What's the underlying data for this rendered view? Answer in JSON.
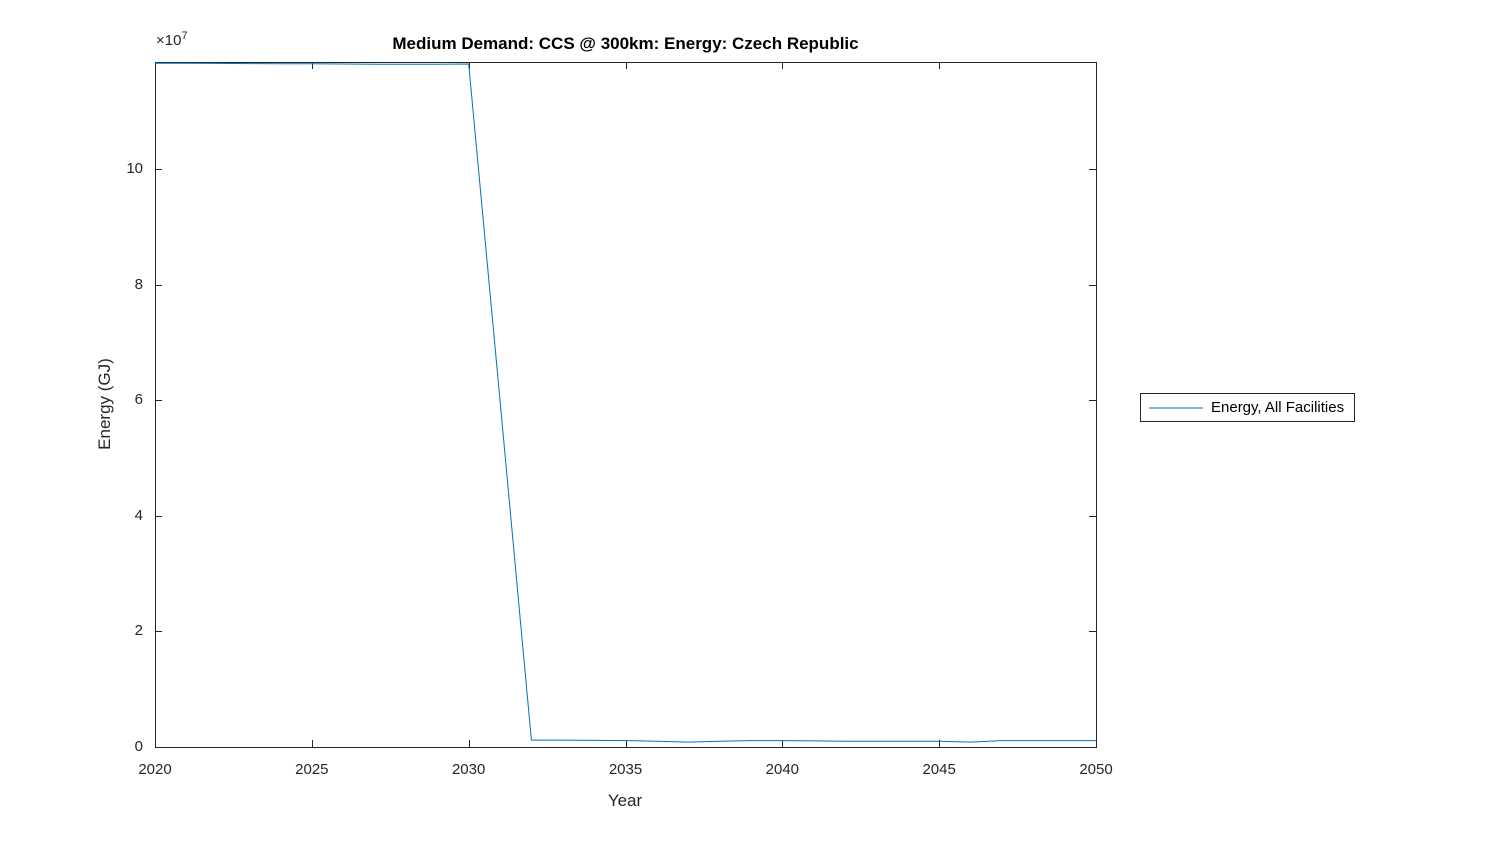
{
  "figure": {
    "background": "#ffffff"
  },
  "chart_data": {
    "type": "line",
    "title": "Medium Demand: CCS @ 300km: Energy: Czech Republic",
    "xlabel": "Year",
    "ylabel": "Energy (GJ)",
    "y_axis_multiplier": {
      "base": "×10",
      "exponent": "7"
    },
    "grid": false,
    "axis_color": "#262626",
    "xlim": [
      2020,
      2050
    ],
    "ylim": [
      0,
      118500000
    ],
    "xticks": {
      "values": [
        2020,
        2025,
        2030,
        2035,
        2040,
        2045,
        2050
      ],
      "labels": [
        "2020",
        "2025",
        "2030",
        "2035",
        "2040",
        "2045",
        "2050"
      ]
    },
    "yticks": {
      "values": [
        0,
        20000000,
        40000000,
        60000000,
        80000000,
        100000000
      ],
      "labels": [
        "0",
        "2",
        "4",
        "6",
        "8",
        "10"
      ]
    },
    "x": [
      2020,
      2021,
      2022,
      2023,
      2024,
      2025,
      2026,
      2027,
      2028,
      2029,
      2030,
      2031,
      2032,
      2033,
      2034,
      2035,
      2036,
      2037,
      2038,
      2039,
      2040,
      2041,
      2042,
      2043,
      2044,
      2045,
      2046,
      2047,
      2048,
      2049,
      2050
    ],
    "series": [
      {
        "name": "Energy, All Facilities",
        "color": "#0072BD",
        "values": [
          118300000,
          118280000,
          118260000,
          118230000,
          118210000,
          118180000,
          118150000,
          118120000,
          118100000,
          118120000,
          118150000,
          60000000,
          1200000,
          1200000,
          1150000,
          1100000,
          1000000,
          850000,
          1000000,
          1100000,
          1100000,
          1050000,
          1000000,
          1000000,
          1000000,
          1000000,
          850000,
          1100000,
          1100000,
          1100000,
          1100000
        ]
      }
    ],
    "legend": {
      "entries": [
        "Energy, All Facilities"
      ],
      "position": "right-outside"
    }
  }
}
